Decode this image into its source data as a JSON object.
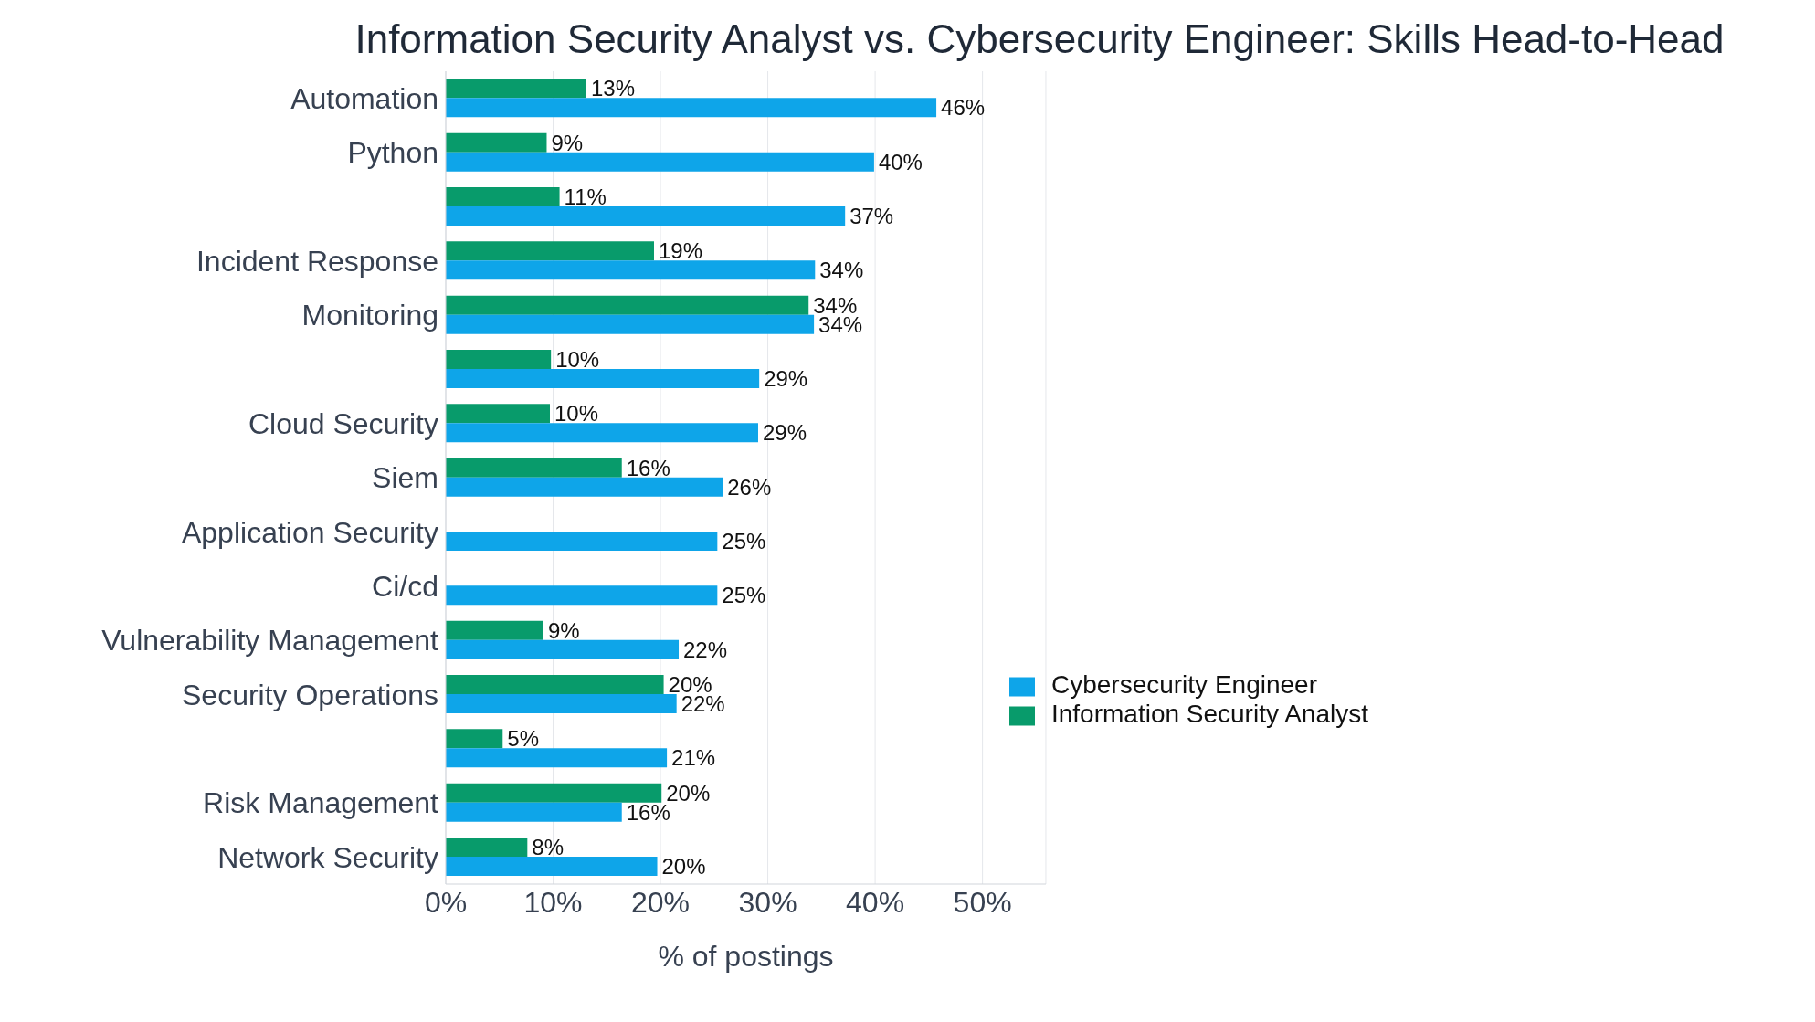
{
  "chart_data": {
    "type": "bar",
    "orientation": "horizontal",
    "title": "Information Security Analyst vs. Cybersecurity Engineer: Skills Head-to-Head",
    "xlabel": "% of postings",
    "categories": [
      "Automation",
      "Python",
      null,
      "Incident Response",
      "Monitoring",
      null,
      "Cloud Security",
      "Siem",
      "Application Security",
      "Ci/cd",
      "Vulnerability Management",
      "Security Operations",
      null,
      "Risk Management",
      "Network Security"
    ],
    "series": [
      {
        "name": "Information Security Analyst",
        "color": "#089b6b",
        "values": [
          13.1,
          9.4,
          10.6,
          19.4,
          33.8,
          9.8,
          9.7,
          16.4,
          null,
          null,
          9.1,
          20.3,
          5.3,
          20.1,
          7.6
        ],
        "value_labels": [
          "13%",
          "9%",
          "11%",
          "19%",
          "34%",
          "10%",
          "10%",
          "16%",
          null,
          null,
          "9%",
          "20%",
          "5%",
          "20%",
          "8%"
        ]
      },
      {
        "name": "Cybersecurity Engineer",
        "color": "#0ea5e9",
        "values": [
          45.7,
          39.9,
          37.2,
          34.4,
          34.3,
          29.2,
          29.1,
          25.8,
          25.3,
          25.3,
          21.7,
          21.5,
          20.6,
          16.4,
          19.7
        ],
        "value_labels": [
          "46%",
          "40%",
          "37%",
          "34%",
          "34%",
          "29%",
          "29%",
          "26%",
          "25%",
          "25%",
          "22%",
          "22%",
          "21%",
          "16%",
          "20%"
        ]
      }
    ],
    "xlim": [
      0,
      55.9
    ],
    "xticks": [
      {
        "value": 0,
        "label": "0%"
      },
      {
        "value": 10,
        "label": "10%"
      },
      {
        "value": 20,
        "label": "20%"
      },
      {
        "value": 30,
        "label": "30%"
      },
      {
        "value": 40,
        "label": "40%"
      },
      {
        "value": 50,
        "label": "50%"
      }
    ],
    "grid": "x",
    "legend": "bottom right"
  }
}
